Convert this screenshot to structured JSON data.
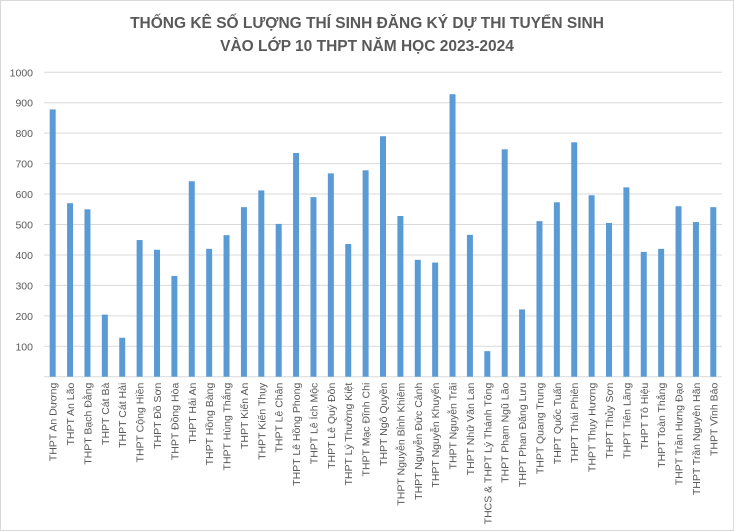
{
  "chart_data": {
    "type": "bar",
    "title": [
      "THỐNG KÊ SỐ LƯỢNG THÍ SINH ĐĂNG KÝ DỰ THI TUYỂN SINH",
      "VÀO LỚP 10 THPT NĂM HỌC 2023-2024"
    ],
    "xlabel": "",
    "ylabel": "",
    "ylim": [
      0,
      1000
    ],
    "yticks": [
      "100",
      "200",
      "300",
      "400",
      "500",
      "600",
      "700",
      "800",
      "900",
      "1000"
    ],
    "grid": true,
    "bar_color": "#5B9BD5",
    "categories": [
      "THPT An Dương",
      "THPT An Lão",
      "THPT Bạch Đằng",
      "THPT Cát Bà",
      "THPT Cát Hải",
      "THPT Cộng Hiền",
      "THPT Đồ Sơn",
      "THPT Đồng Hòa",
      "THPT Hải An",
      "THPT Hồng Bàng",
      "THPT Hùng Thắng",
      "THPT Kiến An",
      "THPT Kiến Thụy",
      "THPT Lê Chân",
      "THPT Lê Hồng Phong",
      "THPT Lê Ích Mộc",
      "THPT Lê Quý Đôn",
      "THPT Lý Thường Kiệt",
      "THPT Mạc Đĩnh Chi",
      "THPT Ngô Quyền",
      "THPT Nguyễn Bỉnh Khiêm",
      "THPT Nguyễn Đức Cảnh",
      "THPT Nguyễn Khuyến",
      "THPT Nguyễn Trãi",
      "THPT Nhữ Văn Lan",
      "THCS & THPT Lý Thánh Tông",
      "THPT Phạm Ngũ Lão",
      "THPT Phan Đăng Lưu",
      "THPT Quang Trung",
      "THPT Quốc Tuấn",
      "THPT Thái Phiên",
      "THPT Thụy Hương",
      "THPT Thủy Sơn",
      "THPT Tiên Lãng",
      "THPT Tô Hiệu",
      "THPT Toàn Thắng",
      "THPT Trần Hưng Đạo",
      "THPT Trần Nguyên Hãn",
      "THPT Vĩnh Bảo"
    ],
    "values": [
      878,
      570,
      550,
      204,
      128,
      449,
      417,
      331,
      642,
      420,
      465,
      557,
      612,
      502,
      735,
      590,
      668,
      436,
      678,
      790,
      528,
      384,
      375,
      928,
      466,
      84,
      747,
      221,
      511,
      573,
      770,
      596,
      505,
      622,
      410,
      420,
      560,
      508,
      557
    ]
  }
}
